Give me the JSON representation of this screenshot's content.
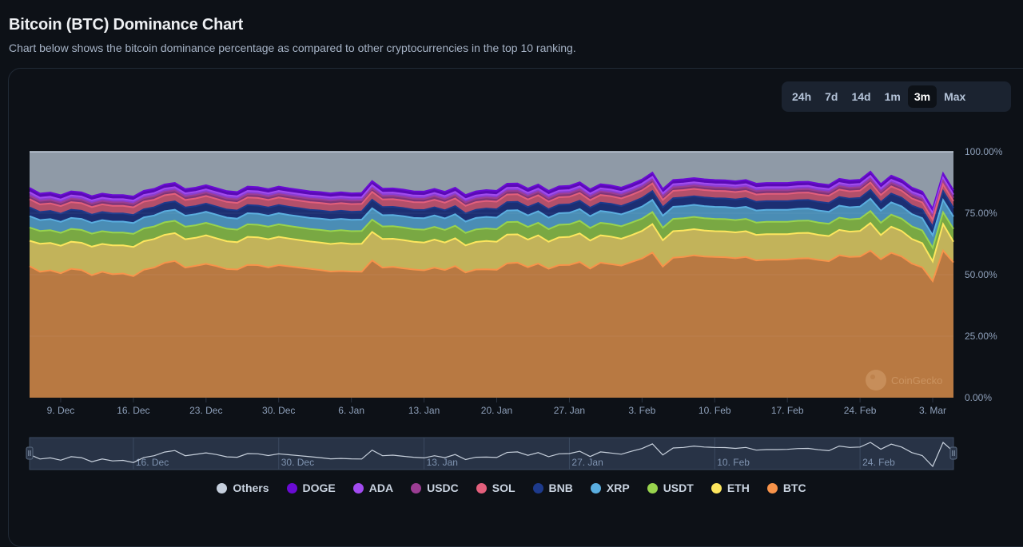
{
  "header": {
    "title": "Bitcoin (BTC) Dominance Chart",
    "subtitle": "Chart below shows the bitcoin dominance percentage as compared to other cryptocurrencies in the top 10 ranking."
  },
  "range_selector": {
    "options": [
      "24h",
      "7d",
      "14d",
      "1m",
      "3m",
      "Max"
    ],
    "selected": "3m"
  },
  "watermark": "CoinGecko",
  "chart_data": {
    "type": "area",
    "stacking": "percent",
    "title": "Bitcoin (BTC) Dominance Chart",
    "xlabel": "",
    "ylabel": "",
    "ylim": [
      0,
      100
    ],
    "y_ticks": [
      "0.00%",
      "25.00%",
      "50.00%",
      "75.00%",
      "100.00%"
    ],
    "x_ticks": [
      "9. Dec",
      "16. Dec",
      "23. Dec",
      "30. Dec",
      "6. Jan",
      "13. Jan",
      "20. Jan",
      "27. Jan",
      "3. Feb",
      "10. Feb",
      "17. Feb",
      "24. Feb",
      "3. Mar"
    ],
    "x_start": "6. Dec",
    "x_end": "5. Mar",
    "navigator_ticks": [
      "16. Dec",
      "30. Dec",
      "13. Jan",
      "27. Jan",
      "10. Feb",
      "24. Feb"
    ],
    "legend_position": "bottom",
    "grid": true,
    "series_colors": {
      "BTC": "#f7934a",
      "ETH": "#fde65e",
      "USDT": "#98d34d",
      "XRP": "#5aaee0",
      "BNB": "#1d3a8c",
      "SOL": "#e35f7c",
      "USDC": "#9b3d93",
      "ADA": "#a24bf0",
      "DOGE": "#6a0bd4",
      "Others": "#c5cfdd"
    },
    "fill_colors": {
      "BTC": "#b87942",
      "ETH": "#c2b35a",
      "USDT": "#79a843",
      "XRP": "#4a8db5",
      "BNB": "#1c2f73",
      "SOL": "#b34f6a",
      "USDC": "#7e3577",
      "ADA": "#8a3fd0",
      "DOGE": "#5a0ab5",
      "Others": "#8f9aa7"
    },
    "legend_order": [
      "Others",
      "DOGE",
      "ADA",
      "USDC",
      "SOL",
      "BNB",
      "XRP",
      "USDT",
      "ETH",
      "BTC"
    ],
    "series": [
      {
        "name": "BTC",
        "values": [
          53.5,
          51.2,
          51.8,
          50.6,
          52.4,
          51.9,
          49.8,
          51.2,
          50.2,
          50.5,
          49.4,
          52.0,
          52.9,
          54.8,
          55.6,
          52.9,
          53.6,
          54.4,
          53.5,
          52.3,
          52.1,
          54.0,
          53.9,
          53.0,
          53.9,
          53.4,
          52.9,
          52.4,
          51.9,
          51.3,
          51.5,
          51.3,
          51.2,
          55.8,
          52.9,
          53.2,
          52.6,
          52.1,
          51.8,
          52.9,
          51.9,
          53.5,
          50.9,
          52.1,
          52.2,
          52.0,
          54.6,
          54.9,
          53.1,
          54.5,
          52.4,
          53.9,
          54.0,
          55.2,
          52.5,
          54.9,
          54.3,
          53.7,
          55.2,
          56.6,
          59.0,
          53.3,
          56.9,
          57.2,
          57.9,
          57.4,
          57.2,
          57.1,
          56.7,
          57.2,
          55.8,
          56.1,
          56.1,
          56.2,
          56.6,
          56.7,
          56.0,
          55.5,
          57.9,
          57.2,
          57.4,
          59.8,
          56.3,
          58.9,
          57.4,
          54.5,
          53.0,
          47.4,
          59.8,
          55.0
        ]
      },
      {
        "name": "ETH",
        "values": [
          10.3,
          11.4,
          11.1,
          11.2,
          11.0,
          11.1,
          11.6,
          11.3,
          11.7,
          11.4,
          11.9,
          11.6,
          11.6,
          11.4,
          11.3,
          11.5,
          11.4,
          11.6,
          11.3,
          11.3,
          11.1,
          11.4,
          11.3,
          11.4,
          11.5,
          11.3,
          11.2,
          11.1,
          11.2,
          11.2,
          11.4,
          11.2,
          11.4,
          11.6,
          11.6,
          11.4,
          11.5,
          11.3,
          11.3,
          11.4,
          11.2,
          11.3,
          11.0,
          11.2,
          11.5,
          11.4,
          11.7,
          11.5,
          11.2,
          11.5,
          11.0,
          11.3,
          11.4,
          11.6,
          11.4,
          11.1,
          11.2,
          10.9,
          10.9,
          11.2,
          11.6,
          10.7,
          10.8,
          10.8,
          10.6,
          10.6,
          10.5,
          10.5,
          10.5,
          10.5,
          10.4,
          10.4,
          10.4,
          10.3,
          10.3,
          10.3,
          10.2,
          10.2,
          10.3,
          10.3,
          10.4,
          11.2,
          9.8,
          10.6,
          10.4,
          10.0,
          9.8,
          8.0,
          10.8,
          8.4
        ]
      },
      {
        "name": "USDT",
        "values": [
          5.4,
          5.2,
          5.2,
          5.2,
          5.2,
          5.2,
          5.3,
          5.2,
          5.2,
          5.2,
          5.3,
          5.2,
          5.1,
          5.1,
          5.0,
          5.1,
          5.1,
          5.1,
          5.1,
          5.1,
          5.1,
          5.1,
          5.1,
          5.1,
          5.1,
          5.1,
          5.1,
          5.1,
          5.1,
          5.2,
          5.2,
          5.2,
          5.2,
          5.0,
          5.1,
          5.1,
          5.1,
          5.1,
          5.2,
          5.1,
          5.1,
          5.1,
          5.1,
          5.1,
          5.1,
          5.1,
          5.1,
          5.1,
          5.1,
          5.1,
          5.1,
          5.1,
          5.1,
          5.1,
          5.1,
          5.1,
          5.1,
          5.1,
          5.1,
          5.0,
          4.9,
          5.1,
          5.0,
          5.0,
          5.0,
          5.0,
          5.0,
          5.0,
          5.0,
          5.0,
          5.0,
          5.0,
          5.0,
          5.0,
          5.0,
          5.0,
          5.0,
          5.0,
          5.0,
          5.0,
          5.0,
          4.9,
          5.0,
          4.9,
          5.0,
          5.1,
          5.2,
          5.5,
          4.8,
          5.2
        ]
      },
      {
        "name": "XRP",
        "values": [
          4.6,
          4.4,
          4.5,
          4.5,
          4.5,
          4.5,
          4.4,
          4.5,
          4.5,
          4.5,
          4.4,
          4.5,
          4.5,
          4.5,
          4.5,
          4.5,
          4.5,
          4.5,
          4.5,
          4.5,
          4.5,
          4.5,
          4.5,
          4.5,
          4.5,
          4.5,
          4.5,
          4.5,
          4.6,
          4.6,
          4.6,
          4.6,
          4.6,
          4.6,
          4.6,
          4.6,
          4.6,
          4.6,
          4.7,
          4.7,
          4.7,
          4.7,
          4.6,
          4.7,
          4.7,
          4.7,
          4.7,
          4.7,
          4.7,
          4.7,
          4.7,
          4.7,
          4.7,
          4.8,
          4.8,
          4.8,
          4.8,
          4.8,
          4.8,
          4.9,
          4.9,
          4.9,
          4.9,
          4.9,
          4.9,
          4.9,
          4.9,
          4.9,
          4.9,
          4.9,
          4.9,
          4.9,
          4.9,
          4.9,
          4.9,
          4.9,
          4.9,
          4.9,
          4.9,
          4.9,
          4.9,
          5.0,
          4.9,
          5.0,
          5.0,
          5.0,
          5.0,
          5.1,
          5.0,
          5.0
        ]
      },
      {
        "name": "BNB",
        "values": [
          3.6,
          3.3,
          3.3,
          3.3,
          3.3,
          3.3,
          3.3,
          3.3,
          3.3,
          3.3,
          3.3,
          3.3,
          3.3,
          3.4,
          3.4,
          3.3,
          3.3,
          3.3,
          3.3,
          3.3,
          3.3,
          3.3,
          3.3,
          3.3,
          3.3,
          3.3,
          3.3,
          3.3,
          3.3,
          3.3,
          3.3,
          3.3,
          3.3,
          3.5,
          3.3,
          3.3,
          3.3,
          3.3,
          3.3,
          3.3,
          3.3,
          3.3,
          3.3,
          3.3,
          3.4,
          3.4,
          3.4,
          3.4,
          3.4,
          3.4,
          3.4,
          3.4,
          3.4,
          3.4,
          3.4,
          3.4,
          3.4,
          3.4,
          3.4,
          3.5,
          3.6,
          3.4,
          3.5,
          3.5,
          3.5,
          3.5,
          3.5,
          3.5,
          3.5,
          3.5,
          3.5,
          3.5,
          3.5,
          3.5,
          3.5,
          3.5,
          3.5,
          3.5,
          3.5,
          3.5,
          3.5,
          3.6,
          3.5,
          3.6,
          3.5,
          3.5,
          3.5,
          3.5,
          3.6,
          3.5
        ]
      },
      {
        "name": "SOL",
        "values": [
          3.3,
          3.1,
          3.1,
          3.1,
          3.1,
          3.1,
          3.1,
          3.1,
          3.1,
          3.1,
          3.1,
          3.1,
          3.1,
          3.1,
          3.1,
          3.1,
          3.1,
          3.1,
          3.1,
          3.1,
          3.1,
          3.1,
          3.1,
          3.1,
          3.1,
          3.1,
          3.1,
          3.1,
          3.1,
          3.1,
          3.1,
          3.1,
          3.1,
          3.2,
          3.1,
          3.1,
          3.1,
          3.1,
          3.1,
          3.1,
          3.1,
          3.1,
          3.1,
          3.1,
          3.1,
          3.1,
          3.1,
          3.1,
          3.1,
          3.1,
          3.1,
          3.1,
          3.1,
          3.1,
          3.1,
          3.1,
          3.1,
          3.1,
          3.1,
          3.1,
          3.1,
          3.0,
          3.0,
          3.0,
          3.0,
          3.0,
          3.0,
          3.0,
          3.0,
          3.0,
          3.0,
          3.0,
          3.0,
          3.0,
          3.0,
          3.0,
          3.0,
          3.0,
          3.0,
          3.0,
          3.0,
          3.0,
          2.9,
          2.9,
          2.9,
          2.9,
          2.9,
          2.9,
          2.8,
          2.8
        ]
      },
      {
        "name": "USDC",
        "values": [
          1.4,
          1.4,
          1.4,
          1.4,
          1.4,
          1.4,
          1.4,
          1.4,
          1.4,
          1.4,
          1.4,
          1.4,
          1.4,
          1.4,
          1.4,
          1.4,
          1.4,
          1.4,
          1.4,
          1.4,
          1.4,
          1.4,
          1.4,
          1.4,
          1.4,
          1.4,
          1.4,
          1.4,
          1.4,
          1.4,
          1.4,
          1.4,
          1.4,
          1.4,
          1.4,
          1.4,
          1.4,
          1.4,
          1.4,
          1.4,
          1.4,
          1.4,
          1.4,
          1.4,
          1.4,
          1.4,
          1.4,
          1.4,
          1.4,
          1.4,
          1.4,
          1.4,
          1.4,
          1.4,
          1.4,
          1.4,
          1.4,
          1.4,
          1.4,
          1.4,
          1.4,
          1.4,
          1.4,
          1.4,
          1.4,
          1.4,
          1.4,
          1.4,
          1.4,
          1.4,
          1.4,
          1.4,
          1.4,
          1.4,
          1.4,
          1.4,
          1.4,
          1.4,
          1.4,
          1.4,
          1.4,
          1.4,
          1.4,
          1.4,
          1.4,
          1.4,
          1.4,
          1.4,
          1.4,
          1.4
        ]
      },
      {
        "name": "ADA",
        "values": [
          1.4,
          1.3,
          1.3,
          1.3,
          1.3,
          1.3,
          1.3,
          1.3,
          1.3,
          1.3,
          1.3,
          1.3,
          1.3,
          1.3,
          1.3,
          1.3,
          1.3,
          1.3,
          1.3,
          1.3,
          1.3,
          1.3,
          1.3,
          1.3,
          1.3,
          1.3,
          1.3,
          1.3,
          1.3,
          1.3,
          1.3,
          1.3,
          1.3,
          1.3,
          1.3,
          1.3,
          1.3,
          1.3,
          1.3,
          1.3,
          1.3,
          1.3,
          1.3,
          1.3,
          1.3,
          1.3,
          1.3,
          1.3,
          1.3,
          1.3,
          1.3,
          1.3,
          1.3,
          1.3,
          1.3,
          1.3,
          1.3,
          1.3,
          1.3,
          1.3,
          1.3,
          1.3,
          1.3,
          1.3,
          1.3,
          1.3,
          1.3,
          1.3,
          1.3,
          1.3,
          1.3,
          1.3,
          1.3,
          1.3,
          1.3,
          1.3,
          1.3,
          1.3,
          1.3,
          1.3,
          1.3,
          1.3,
          1.3,
          1.3,
          1.3,
          1.3,
          1.3,
          1.3,
          1.3,
          1.3
        ]
      },
      {
        "name": "DOGE",
        "values": [
          1.8,
          1.7,
          1.7,
          1.7,
          1.7,
          1.7,
          1.7,
          1.7,
          1.7,
          1.7,
          1.7,
          1.7,
          1.7,
          1.7,
          1.7,
          1.7,
          1.7,
          1.7,
          1.7,
          1.7,
          1.7,
          1.7,
          1.7,
          1.7,
          1.7,
          1.7,
          1.7,
          1.7,
          1.7,
          1.7,
          1.7,
          1.7,
          1.7,
          1.7,
          1.7,
          1.7,
          1.7,
          1.7,
          1.7,
          1.7,
          1.7,
          1.7,
          1.7,
          1.7,
          1.7,
          1.7,
          1.7,
          1.7,
          1.7,
          1.7,
          1.7,
          1.7,
          1.7,
          1.7,
          1.7,
          1.7,
          1.7,
          1.7,
          1.7,
          1.7,
          1.7,
          1.7,
          1.7,
          1.7,
          1.7,
          1.7,
          1.7,
          1.7,
          1.7,
          1.7,
          1.7,
          1.7,
          1.7,
          1.7,
          1.7,
          1.7,
          1.7,
          1.7,
          1.7,
          1.7,
          1.7,
          1.7,
          1.7,
          1.7,
          1.7,
          1.7,
          1.7,
          1.7,
          1.7,
          1.7
        ]
      },
      {
        "name": "Others",
        "values": "remainder to 100%"
      }
    ]
  },
  "legend": [
    {
      "label": "Others",
      "color": "#c5cfdd"
    },
    {
      "label": "DOGE",
      "color": "#6a0bd4"
    },
    {
      "label": "ADA",
      "color": "#a24bf0"
    },
    {
      "label": "USDC",
      "color": "#9b3d93"
    },
    {
      "label": "SOL",
      "color": "#e35f7c"
    },
    {
      "label": "BNB",
      "color": "#1d3a8c"
    },
    {
      "label": "XRP",
      "color": "#5aaee0"
    },
    {
      "label": "USDT",
      "color": "#98d34d"
    },
    {
      "label": "ETH",
      "color": "#fde65e"
    },
    {
      "label": "BTC",
      "color": "#f7934a"
    }
  ]
}
